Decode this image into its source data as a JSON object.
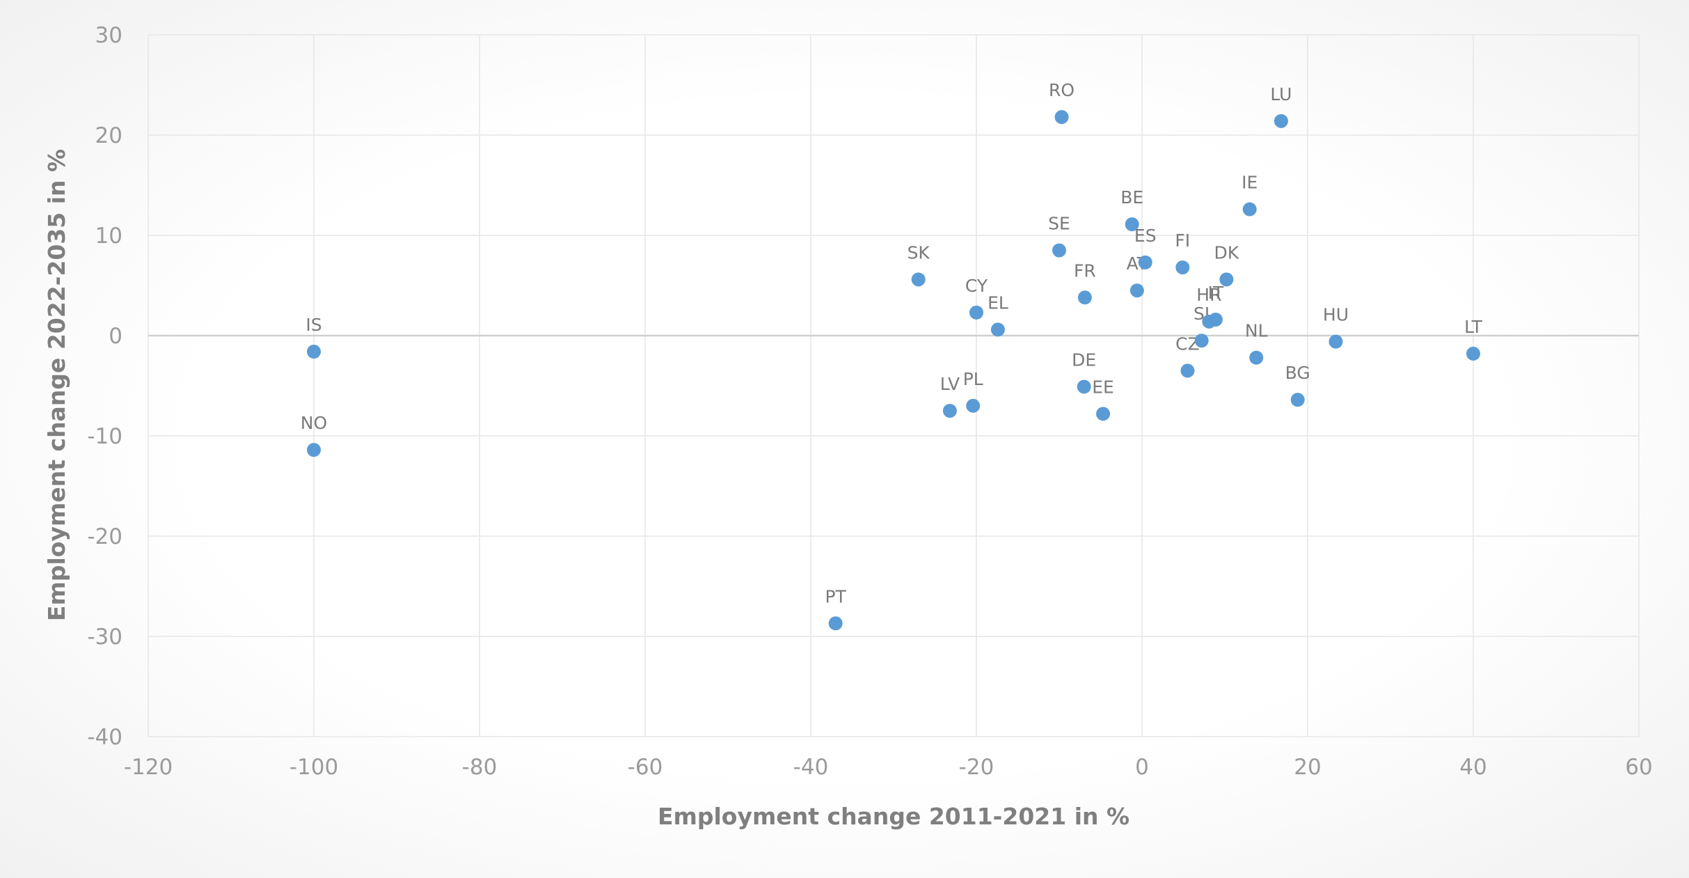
{
  "chart_data": {
    "type": "scatter",
    "title": "",
    "xlabel": "Employment change 2011-2021 in %",
    "ylabel": "Employment change 2022-2035 in %",
    "xlim": [
      -120,
      60
    ],
    "ylim": [
      -40,
      30
    ],
    "x_ticks": [
      -120,
      -100,
      -80,
      -60,
      -40,
      -20,
      0,
      20,
      40,
      60
    ],
    "y_ticks": [
      -40,
      -30,
      -20,
      -10,
      0,
      10,
      20,
      30
    ],
    "grid": true,
    "legend": "none",
    "colors": {
      "points": "#5b9bd5"
    },
    "points": [
      {
        "label": "IS",
        "x": -100,
        "y": -1.6
      },
      {
        "label": "NO",
        "x": -100,
        "y": -11.4
      },
      {
        "label": "PT",
        "x": -37,
        "y": -28.7
      },
      {
        "label": "SK",
        "x": -27,
        "y": 5.6
      },
      {
        "label": "LV",
        "x": -23.2,
        "y": -7.5
      },
      {
        "label": "PL",
        "x": -20.4,
        "y": -7
      },
      {
        "label": "CY",
        "x": -20,
        "y": 2.3
      },
      {
        "label": "EL",
        "x": -17.4,
        "y": 0.6
      },
      {
        "label": "SE",
        "x": -10,
        "y": 8.5
      },
      {
        "label": "RO",
        "x": -9.7,
        "y": 21.8
      },
      {
        "label": "FR",
        "x": -6.9,
        "y": 3.8
      },
      {
        "label": "DE",
        "x": -7,
        "y": -5.1
      },
      {
        "label": "EE",
        "x": -4.7,
        "y": -7.8
      },
      {
        "label": "BE",
        "x": -1.2,
        "y": 11.1
      },
      {
        "label": "AT",
        "x": -0.6,
        "y": 4.5
      },
      {
        "label": "ES",
        "x": 0.4,
        "y": 7.3
      },
      {
        "label": "FI",
        "x": 4.9,
        "y": 6.8
      },
      {
        "label": "CZ",
        "x": 5.5,
        "y": -3.5
      },
      {
        "label": "SI",
        "x": 7.2,
        "y": -0.5
      },
      {
        "label": "HR",
        "x": 8.1,
        "y": 1.4
      },
      {
        "label": "IT",
        "x": 8.9,
        "y": 1.6
      },
      {
        "label": "DK",
        "x": 10.2,
        "y": 5.6
      },
      {
        "label": "IE",
        "x": 13,
        "y": 12.6
      },
      {
        "label": "NL",
        "x": 13.8,
        "y": -2.2
      },
      {
        "label": "LU",
        "x": 16.8,
        "y": 21.4
      },
      {
        "label": "BG",
        "x": 18.8,
        "y": -6.4
      },
      {
        "label": "HU",
        "x": 23.4,
        "y": -0.6
      },
      {
        "label": "LT",
        "x": 40,
        "y": -1.8
      }
    ]
  }
}
